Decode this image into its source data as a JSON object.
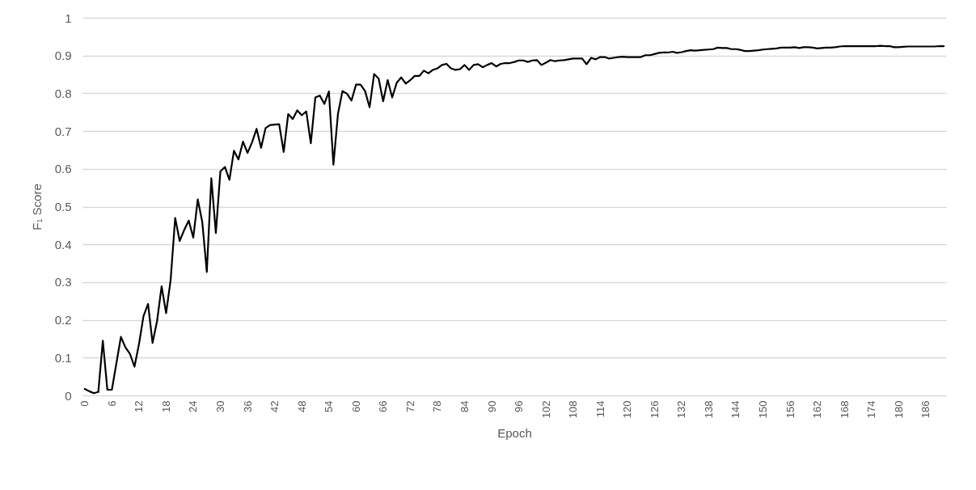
{
  "chart_data": {
    "type": "line",
    "xlabel": "Epoch",
    "ylabel": "F₁ Score",
    "color": "#000000",
    "grid": "y",
    "categories": [
      "0",
      null,
      null,
      null,
      null,
      null,
      "6",
      null,
      null,
      null,
      null,
      null,
      "12",
      null,
      null,
      null,
      null,
      null,
      "18",
      null,
      null,
      null,
      null,
      null,
      "24",
      null,
      null,
      null,
      null,
      null,
      "30",
      null,
      null,
      null,
      null,
      null,
      "36",
      null,
      null,
      null,
      null,
      null,
      "42",
      null,
      null,
      null,
      null,
      null,
      "48",
      null,
      null,
      null,
      null,
      null,
      "54",
      null,
      null,
      null,
      null,
      null,
      "60",
      null,
      null,
      null,
      null,
      null,
      "66",
      null,
      null,
      null,
      null,
      null,
      "72",
      null,
      null,
      null,
      null,
      null,
      "78",
      null,
      null,
      null,
      null,
      null,
      "84",
      null,
      null,
      null,
      null,
      null,
      "90",
      null,
      null,
      null,
      null,
      null,
      "96",
      null,
      null,
      null,
      null,
      null,
      "102",
      null,
      null,
      null,
      null,
      null,
      "108",
      null,
      null,
      null,
      null,
      null,
      "114",
      null,
      null,
      null,
      null,
      null,
      "120",
      null,
      null,
      null,
      null,
      null,
      "126",
      null,
      null,
      null,
      null,
      null,
      "132",
      null,
      null,
      null,
      null,
      null,
      "138",
      null,
      null,
      null,
      null,
      null,
      "144",
      null,
      null,
      null,
      null,
      null,
      "150",
      null,
      null,
      null,
      null,
      null,
      "156",
      null,
      null,
      null,
      null,
      null,
      "162",
      null,
      null,
      null,
      null,
      null,
      "168",
      null,
      null,
      null,
      null,
      null,
      "174",
      null,
      null,
      null,
      null,
      null,
      "180",
      null,
      null,
      null,
      null,
      null,
      "186",
      null,
      null,
      null,
      null
    ],
    "values": [
      0.017,
      0.011,
      0.006,
      0.009,
      0.145,
      0.015,
      0.015,
      0.085,
      0.155,
      0.127,
      0.11,
      0.076,
      0.136,
      0.21,
      0.242,
      0.139,
      0.197,
      0.289,
      0.218,
      0.306,
      0.47,
      0.409,
      0.438,
      0.463,
      0.418,
      0.519,
      0.459,
      0.327,
      0.575,
      0.43,
      0.593,
      0.605,
      0.571,
      0.648,
      0.625,
      0.672,
      0.642,
      0.67,
      0.706,
      0.656,
      0.708,
      0.716,
      0.717,
      0.718,
      0.645,
      0.745,
      0.732,
      0.755,
      0.742,
      0.752,
      0.668,
      0.789,
      0.794,
      0.772,
      0.805,
      0.611,
      0.745,
      0.806,
      0.799,
      0.781,
      0.823,
      0.823,
      0.806,
      0.763,
      0.851,
      0.839,
      0.779,
      0.835,
      0.789,
      0.828,
      0.842,
      0.826,
      0.835,
      0.846,
      0.846,
      0.86,
      0.853,
      0.862,
      0.866,
      0.875,
      0.878,
      0.866,
      0.862,
      0.864,
      0.875,
      0.862,
      0.875,
      0.877,
      0.869,
      0.875,
      0.88,
      0.871,
      0.878,
      0.88,
      0.88,
      0.883,
      0.887,
      0.887,
      0.883,
      0.887,
      0.888,
      0.875,
      0.881,
      0.888,
      0.885,
      0.887,
      0.888,
      0.89,
      0.892,
      0.892,
      0.892,
      0.877,
      0.894,
      0.89,
      0.896,
      0.896,
      0.892,
      0.894,
      0.896,
      0.897,
      0.896,
      0.896,
      0.896,
      0.896,
      0.901,
      0.901,
      0.904,
      0.907,
      0.908,
      0.908,
      0.91,
      0.907,
      0.909,
      0.912,
      0.914,
      0.913,
      0.914,
      0.915,
      0.916,
      0.917,
      0.921,
      0.92,
      0.92,
      0.917,
      0.917,
      0.915,
      0.912,
      0.912,
      0.913,
      0.914,
      0.916,
      0.917,
      0.918,
      0.919,
      0.921,
      0.921,
      0.921,
      0.922,
      0.92,
      0.922,
      0.922,
      0.921,
      0.919,
      0.92,
      0.921,
      0.921,
      0.922,
      0.924,
      0.925,
      0.925,
      0.925,
      0.925,
      0.925,
      0.925,
      0.925,
      0.925,
      0.926,
      0.925,
      0.925,
      0.922,
      0.922,
      0.923,
      0.924,
      0.924,
      0.924,
      0.924,
      0.924,
      0.924,
      0.924,
      0.925,
      0.925
    ],
    "ylim": [
      0,
      1
    ],
    "yticks": [
      0,
      0.1,
      0.2,
      0.3,
      0.4,
      0.5,
      0.6,
      0.7,
      0.8,
      0.9,
      1
    ]
  }
}
